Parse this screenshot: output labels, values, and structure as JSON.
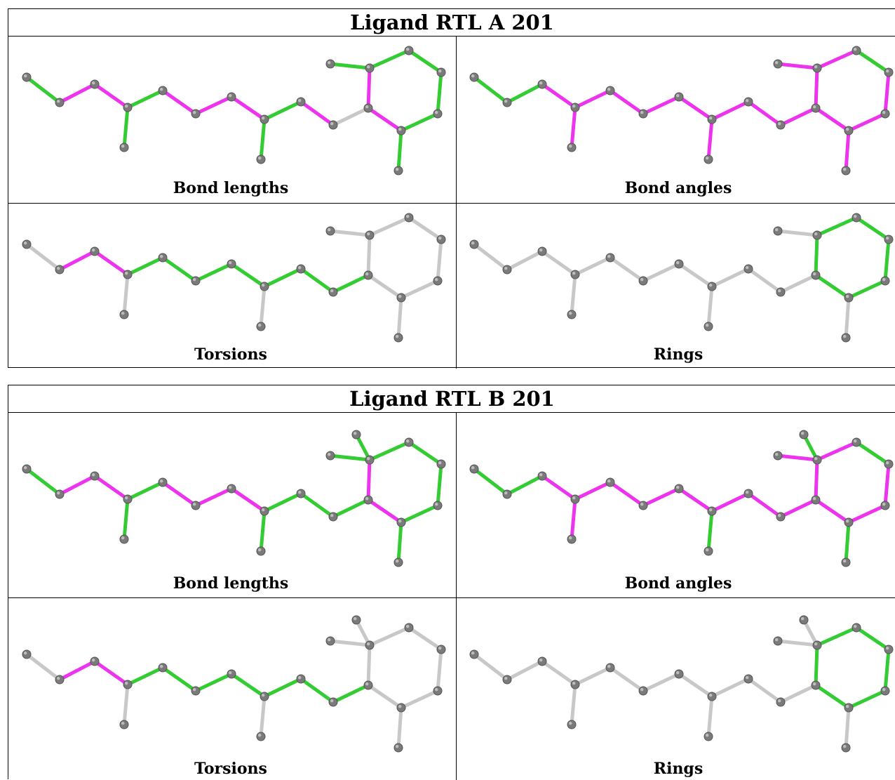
{
  "tables": [
    {
      "title": "Ligand RTL A 201",
      "panels": [
        "Bond lengths",
        "Bond angles",
        "Torsions",
        "Rings"
      ]
    },
    {
      "title": "Ligand RTL B 201",
      "panels": [
        "Bond lengths",
        "Bond angles",
        "Torsions",
        "Rings"
      ]
    }
  ],
  "colors": {
    "outlier": "#ee33ee",
    "ok": "#33cc33",
    "unchecked": "#c8c8c8",
    "atom": "#7a7a7a"
  }
}
